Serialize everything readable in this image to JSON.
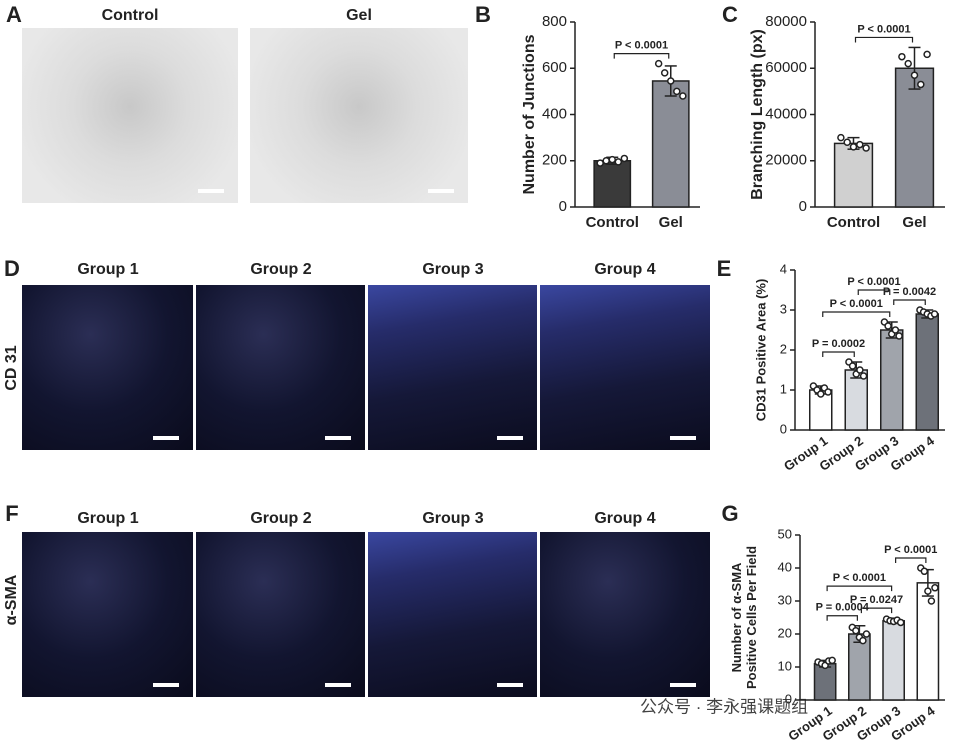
{
  "panel_labels": [
    "A",
    "B",
    "C",
    "D",
    "E",
    "F",
    "G"
  ],
  "image_titles_a": [
    "Control",
    "Gel"
  ],
  "image_titles_d": [
    "Group 1",
    "Group 2",
    "Group 3",
    "Group 4"
  ],
  "row_label_d": "CD 31",
  "image_titles_f": [
    "Group 1",
    "Group 2",
    "Group 3",
    "Group 4"
  ],
  "row_label_f": "α-SMA",
  "watermark": "公众号 · 李永强课题组",
  "chart_data": [
    {
      "type": "bar",
      "y_label": [
        "Number of Junctions"
      ],
      "categories": [
        "Control",
        "Gel"
      ],
      "values": [
        200,
        545
      ],
      "errors": [
        15,
        65
      ],
      "colors": [
        "#3a3a3a",
        "#8a8d96"
      ],
      "points": [
        [
          190,
          200,
          205,
          195,
          210
        ],
        [
          620,
          580,
          545,
          500,
          480
        ]
      ],
      "ylim": [
        0,
        800
      ],
      "yticks": [
        0,
        200,
        400,
        600,
        800
      ],
      "comparisons": [
        {
          "label": "P < 0.0001",
          "groups": [
            "Control",
            "Gel"
          ]
        }
      ]
    },
    {
      "type": "bar",
      "y_label": [
        "Branching Length (px)"
      ],
      "categories": [
        "Control",
        "Gel"
      ],
      "values": [
        27500,
        60000
      ],
      "errors": [
        2500,
        9000
      ],
      "colors": [
        "#d0d0d0",
        "#8a8d96"
      ],
      "points": [
        [
          30000,
          28000,
          26000,
          27000,
          25500
        ],
        [
          65000,
          62000,
          57000,
          53000,
          66000
        ]
      ],
      "ylim": [
        0,
        80000
      ],
      "yticks": [
        0,
        20000,
        40000,
        60000,
        80000
      ],
      "comparisons": [
        {
          "label": "P < 0.0001",
          "groups": [
            "Control",
            "Gel"
          ]
        }
      ]
    },
    {
      "type": "bar",
      "y_label": [
        "CD31 Positive Area (%)"
      ],
      "categories": [
        "Group 1",
        "Group 2",
        "Group 3",
        "Group 4"
      ],
      "values": [
        1.0,
        1.5,
        2.5,
        2.9
      ],
      "errors": [
        0.1,
        0.2,
        0.2,
        0.1
      ],
      "colors": [
        "#ffffff",
        "#d8dbe0",
        "#a0a4ab",
        "#6d7179"
      ],
      "points": [
        [
          1.1,
          1.0,
          0.9,
          1.05,
          0.95
        ],
        [
          1.7,
          1.6,
          1.4,
          1.5,
          1.35
        ],
        [
          2.7,
          2.6,
          2.4,
          2.5,
          2.35
        ],
        [
          3.0,
          2.95,
          2.9,
          2.85,
          2.9
        ]
      ],
      "ylim": [
        0,
        4
      ],
      "yticks": [
        0,
        1,
        2,
        3,
        4
      ],
      "comparisons": [
        {
          "label": "P = 0.0002",
          "groups": [
            "Group 1",
            "Group 2"
          ]
        },
        {
          "label": "P = 0.0042",
          "groups": [
            "Group 3",
            "Group 4"
          ]
        },
        {
          "label": "P < 0.0001",
          "groups": [
            "Group 1",
            "Group 3"
          ]
        },
        {
          "label": "P < 0.0001",
          "groups": [
            "Group 2",
            "Group 3"
          ]
        }
      ]
    },
    {
      "type": "bar",
      "y_label": [
        "Number of α-SMA",
        "Positive Cells Per Field"
      ],
      "categories": [
        "Group 1",
        "Group 2",
        "Group 3",
        "Group 4"
      ],
      "values": [
        11,
        20,
        24,
        35.5
      ],
      "errors": [
        1,
        2.5,
        0.8,
        4
      ],
      "colors": [
        "#6d7179",
        "#a0a4ab",
        "#d8dbe0",
        "#ffffff"
      ],
      "points": [
        [
          11.5,
          11,
          10.5,
          11.8,
          12
        ],
        [
          22,
          21,
          19,
          18,
          20
        ],
        [
          24.5,
          24,
          23.8,
          24.2,
          23.5
        ],
        [
          40,
          39,
          33,
          30,
          34
        ]
      ],
      "ylim": [
        0,
        50
      ],
      "yticks": [
        0,
        10,
        20,
        30,
        40,
        50
      ],
      "comparisons": [
        {
          "label": "P = 0.0004",
          "groups": [
            "Group 1",
            "Group 2"
          ]
        },
        {
          "label": "P = 0.0247",
          "groups": [
            "Group 2",
            "Group 3"
          ]
        },
        {
          "label": "P < 0.0001",
          "groups": [
            "Group 1",
            "Group 3"
          ]
        },
        {
          "label": "P < 0.0001",
          "groups": [
            "Group 3",
            "Group 4"
          ]
        }
      ]
    }
  ]
}
